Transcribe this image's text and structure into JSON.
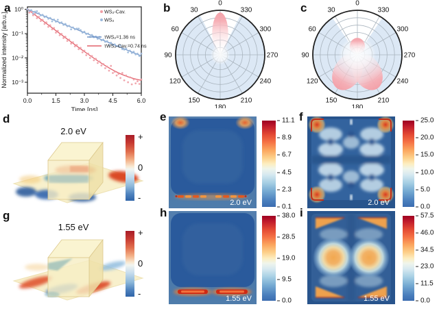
{
  "panels": {
    "a": "a",
    "b": "b",
    "c": "c",
    "d": "d",
    "e": "e",
    "f": "f",
    "g": "g",
    "h": "h",
    "i": "i"
  },
  "panel_d": {
    "title": "2.0 eV",
    "colorbar_labels": [
      "+",
      "0",
      "-"
    ]
  },
  "panel_g": {
    "title": "1.55 eV",
    "colorbar_labels": [
      "+",
      "0",
      "-"
    ]
  },
  "chart_data": [
    {
      "id": "a",
      "type": "scatter",
      "xlabel": "Time [ns]",
      "ylabel": "Normalized intensity [arb.u.]",
      "x_range": [
        0,
        6
      ],
      "y_scale": "log",
      "y_range": [
        0.001,
        1
      ],
      "xticks": [
        0,
        1.5,
        3,
        4.5,
        6
      ],
      "xtick_labels": [
        "0.0",
        "1.5",
        "3.0",
        "4.5",
        "6.0"
      ],
      "ytick_labels": [
        "10⁰",
        "10⁻¹",
        "10⁻²",
        "10⁻³"
      ],
      "ytick_exponents": [
        0,
        -1,
        -2,
        -3
      ],
      "series": [
        {
          "name": "WS₂-Cav.",
          "marker": "dot",
          "color": "#f09fa6",
          "points": [
            [
              0.0,
              1.0
            ],
            [
              0.1,
              0.74
            ],
            [
              0.2,
              0.8
            ],
            [
              0.3,
              0.57
            ],
            [
              0.4,
              0.64
            ],
            [
              0.5,
              0.43
            ],
            [
              0.6,
              0.49
            ],
            [
              0.7,
              0.33
            ],
            [
              0.8,
              0.37
            ],
            [
              0.9,
              0.25
            ],
            [
              1.0,
              0.29
            ],
            [
              1.1,
              0.19
            ],
            [
              1.2,
              0.22
            ],
            [
              1.3,
              0.15
            ],
            [
              1.4,
              0.17
            ],
            [
              1.5,
              0.11
            ],
            [
              1.6,
              0.13
            ],
            [
              1.7,
              0.086
            ],
            [
              1.8,
              0.097
            ],
            [
              1.9,
              0.066
            ],
            [
              2.0,
              0.075
            ],
            [
              2.1,
              0.05
            ],
            [
              2.2,
              0.057
            ],
            [
              2.3,
              0.039
            ],
            [
              2.4,
              0.044
            ],
            [
              2.5,
              0.03
            ],
            [
              2.6,
              0.034
            ],
            [
              2.7,
              0.023
            ],
            [
              2.8,
              0.026
            ],
            [
              2.9,
              0.017
            ],
            [
              3.0,
              0.02
            ],
            [
              3.1,
              0.013
            ],
            [
              3.2,
              0.015
            ],
            [
              3.3,
              0.01
            ],
            [
              3.4,
              0.012
            ],
            [
              3.5,
              0.008
            ],
            [
              3.6,
              0.0092
            ],
            [
              3.7,
              0.0062
            ],
            [
              3.8,
              0.0071
            ],
            [
              3.9,
              0.0049
            ],
            [
              4.0,
              0.0056
            ],
            [
              4.1,
              0.0038
            ],
            [
              4.2,
              0.0044
            ],
            [
              4.3,
              0.003
            ],
            [
              4.4,
              0.0047
            ],
            [
              4.5,
              0.0024
            ],
            [
              4.6,
              0.0027
            ],
            [
              4.7,
              0.0019
            ],
            [
              4.8,
              0.0022
            ],
            [
              4.9,
              0.0015
            ],
            [
              5.0,
              0.0024
            ],
            [
              5.1,
              0.0012
            ],
            [
              5.2,
              0.0019
            ],
            [
              5.3,
              0.001
            ],
            [
              5.4,
              0.0016
            ],
            [
              5.5,
              0.00082
            ],
            [
              5.6,
              0.0013
            ],
            [
              5.7,
              0.0009
            ],
            [
              5.8,
              0.0011
            ],
            [
              5.9,
              0.00085
            ],
            [
              6.0,
              0.0013
            ]
          ]
        },
        {
          "name": "WS₂",
          "marker": "dot",
          "color": "#9bb9dc",
          "points": [
            [
              0.0,
              1.0
            ],
            [
              0.1,
              0.86
            ],
            [
              0.2,
              0.92
            ],
            [
              0.3,
              0.66
            ],
            [
              0.4,
              0.8
            ],
            [
              0.5,
              0.83
            ],
            [
              0.6,
              0.69
            ],
            [
              0.7,
              0.56
            ],
            [
              0.8,
              0.59
            ],
            [
              0.9,
              0.48
            ],
            [
              1.0,
              0.51
            ],
            [
              1.1,
              0.41
            ],
            [
              1.2,
              0.44
            ],
            [
              1.3,
              0.32
            ],
            [
              1.4,
              0.38
            ],
            [
              1.5,
              0.31
            ],
            [
              1.6,
              0.37
            ],
            [
              1.7,
              0.27
            ],
            [
              1.8,
              0.29
            ],
            [
              1.9,
              0.23
            ],
            [
              2.0,
              0.25
            ],
            [
              2.1,
              0.2
            ],
            [
              2.2,
              0.21
            ],
            [
              2.3,
              0.15
            ],
            [
              2.4,
              0.18
            ],
            [
              2.5,
              0.15
            ],
            [
              2.6,
              0.16
            ],
            [
              2.7,
              0.16
            ],
            [
              2.8,
              0.14
            ],
            [
              2.9,
              0.11
            ],
            [
              3.0,
              0.12
            ],
            [
              3.1,
              0.096
            ],
            [
              3.2,
              0.1
            ],
            [
              3.3,
              0.073
            ],
            [
              3.4,
              0.088
            ],
            [
              3.5,
              0.071
            ],
            [
              3.6,
              0.076
            ],
            [
              3.7,
              0.061
            ],
            [
              3.8,
              0.073
            ],
            [
              3.9,
              0.053
            ],
            [
              4.0,
              0.057
            ],
            [
              4.1,
              0.046
            ],
            [
              4.2,
              0.049
            ],
            [
              4.3,
              0.034
            ],
            [
              4.4,
              0.042
            ],
            [
              4.5,
              0.034
            ],
            [
              4.6,
              0.036
            ],
            [
              4.7,
              0.03
            ],
            [
              4.8,
              0.031
            ],
            [
              4.9,
              0.033
            ],
            [
              5.0,
              0.023
            ],
            [
              5.1,
              0.022
            ],
            [
              5.2,
              0.024
            ],
            [
              5.3,
              0.017
            ],
            [
              5.4,
              0.02
            ],
            [
              5.5,
              0.016
            ],
            [
              5.6,
              0.018
            ],
            [
              5.7,
              0.014
            ],
            [
              5.8,
              0.015
            ],
            [
              5.9,
              0.012
            ],
            [
              6.0,
              0.015
            ]
          ]
        }
      ],
      "fits": [
        {
          "name": "τWS₂=1.36 ns",
          "color": "#7195c8",
          "tau_ns": 1.36,
          "floor": 0
        },
        {
          "name": "τWS₂-Cav.=0.74 ns",
          "color": "#e2606a",
          "tau_ns": 0.74,
          "floor": 0.0009
        }
      ]
    },
    {
      "id": "b",
      "type": "polar",
      "rings": 5,
      "angle_labels": [
        "0",
        "30",
        "60",
        "90",
        "120",
        "150",
        "180",
        "210",
        "240",
        "270",
        "300",
        "330"
      ],
      "lobes": [
        {
          "angle_deg": 0,
          "reach": 0.95,
          "width": 0.36
        }
      ]
    },
    {
      "id": "c",
      "type": "polar",
      "rings": 5,
      "angle_labels": [
        "0",
        "30",
        "60",
        "90",
        "120",
        "150",
        "180",
        "210",
        "240",
        "270",
        "300",
        "330"
      ],
      "lobes": [
        {
          "angle_deg": 0,
          "reach": 0.38,
          "width": 0.34
        },
        {
          "angle_deg": 150,
          "reach": 0.88,
          "width": 0.62
        },
        {
          "angle_deg": 210,
          "reach": 0.88,
          "width": 0.62
        }
      ]
    },
    {
      "id": "e",
      "type": "heatmap",
      "energy_label": "2.0 eV",
      "range": [
        0.1,
        11.1
      ],
      "colorbar_ticks": [
        "11.1",
        "8.9",
        "6.7",
        "4.5",
        "2.3",
        "0.1"
      ]
    },
    {
      "id": "f",
      "type": "heatmap",
      "energy_label": "2.0 eV",
      "range": [
        0.0,
        25.0
      ],
      "colorbar_ticks": [
        "25.0",
        "20.0",
        "15.0",
        "10.0",
        "5.0",
        "0.0"
      ]
    },
    {
      "id": "h",
      "type": "heatmap",
      "energy_label": "1.55 eV",
      "range": [
        0.0,
        38.0
      ],
      "colorbar_ticks": [
        "38.0",
        "28.5",
        "19.0",
        "9.5",
        "0.0"
      ]
    },
    {
      "id": "i",
      "type": "heatmap",
      "energy_label": "1.55 eV",
      "range": [
        0.0,
        57.5
      ],
      "colorbar_ticks": [
        "57.5",
        "46.0",
        "34.5",
        "23.0",
        "11.5",
        "0.0"
      ]
    }
  ]
}
